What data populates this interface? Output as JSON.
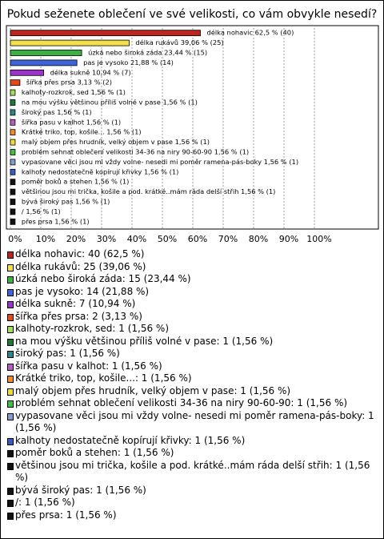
{
  "chart_data": {
    "type": "bar",
    "orientation": "horizontal",
    "title": "Pokud seženete oblečení ve své velikosti, co vám obvykle nesedí?",
    "categories": [
      "délka nohavic",
      "délka rukávů",
      "úzká nebo široká záda",
      "pas je vysoko",
      "délka sukně",
      "šířka přes prsa",
      "kalhoty-rozkrok, sed",
      "na mou výšku většinou příliš volné v pase",
      "široký pas",
      "šířka pasu v kalhot",
      "Krátké triko, top, košile...",
      "malý objem přes hrudník, velký objem v pase",
      "problém sehnat oblečení velikosti 34-36 na niry 90-60-90",
      "vypasovane věci jsou mi vždy volne- nesedi mi poměr ramena-pás-boky",
      "kalhoty nedostatečně kopírují křivky",
      "poměr boků a stehen",
      "většinou jsou mi trička, košile a pod. krátké..mám ráda delší střih",
      "bývá široký pas",
      "/",
      "přes prsa"
    ],
    "values": [
      62.5,
      39.06,
      23.44,
      21.88,
      10.94,
      3.13,
      1.56,
      1.56,
      1.56,
      1.56,
      1.56,
      1.56,
      1.56,
      1.56,
      1.56,
      1.56,
      1.56,
      1.56,
      1.56,
      1.56
    ],
    "value_labels": [
      "délka nohavic 62,5 % (40)",
      "délka rukávů 39,06 % (25)",
      "úzká nebo široká záda 23,44 % (15)",
      "pas je vysoko 21,88 % (14)",
      "délka sukně 10,94 % (7)",
      "šířka přes prsa 3,13 % (2)",
      "kalhoty-rozkrok, sed 1,56 % (1)",
      "na mou výšku většinou příliš volné v pase 1,56 % (1)",
      "široký pas 1,56 % (1)",
      "šířka pasu v kalhot 1,56 % (1)",
      "Krátké triko, top, košile... 1,56 % (1)",
      "malý objem přes hrudník, velký objem v pase 1,56 % (1)",
      "problém sehnat oblečení velikosti 34-36 na niry 90-60-90 1,56 % (1)",
      "vypasovane věci jsou mi vždy volne- nesedi mi poměr ramena-pás-boky 1,56 % (1)",
      "kalhoty nedostatečně kopírují křivky 1,56 % (1)",
      "poměr boků a stehen 1,56 % (1)",
      "většinou jsou mi trička, košile a pod. krátké..mám ráda delší střih 1,56 % (1)",
      "bývá široký pas 1,56 % (1)",
      "/ 1,56 % (1)",
      "přes prsa 1,56 % (1)"
    ],
    "legend": [
      "délka nohavic: 40 (62,5 %)",
      "délka rukávů: 25 (39,06 %)",
      "úzká nebo široká záda: 15 (23,44 %)",
      "pas je vysoko: 14 (21,88 %)",
      "délka sukně: 7 (10,94 %)",
      "šířka přes prsa: 2 (3,13 %)",
      "kalhoty-rozkrok, sed: 1 (1,56 %)",
      "na mou výšku většinou příliš volné v pase: 1 (1,56 %)",
      "široký pas: 1 (1,56 %)",
      "šířka pasu v kalhot: 1 (1,56 %)",
      "Krátké triko, top, košile...: 1 (1,56 %)",
      "malý objem přes hrudník, velký objem v pase: 1 (1,56 %)",
      "problém sehnat oblečení velikosti 34-36 na niry 90-60-90: 1 (1,56 %)",
      "vypasovane věci jsou mi vždy volne- nesedi mi poměr ramena-pás-boky: 1 (1,56 %)",
      "kalhoty nedostatečně kopírují křivky: 1 (1,56 %)",
      "poměr boků a stehen: 1 (1,56 %)",
      "většinou jsou mi trička, košile a pod. krátké..mám ráda delší střih: 1 (1,56 %)",
      "bývá široký pas: 1 (1,56 %)",
      "/: 1 (1,56 %)",
      "přes prsa: 1 (1,56 %)"
    ],
    "colors": [
      "#b8261c",
      "#f2e04a",
      "#3cb043",
      "#3f63d8",
      "#9b34c9",
      "#e04a1c",
      "#a4dc5c",
      "#1f7a3a",
      "#2e8585",
      "#b85cc4",
      "#f08a2a",
      "#eedc3a",
      "#3fbf46",
      "#8a98d0",
      "#3b5bbd",
      "#111111",
      "#111111",
      "#111111",
      "#111111",
      "#111111"
    ],
    "xlim": [
      0,
      100
    ],
    "xticks": [
      {
        "value": 0,
        "label": "0%"
      },
      {
        "value": 10,
        "label": "10%"
      },
      {
        "value": 20,
        "label": "20%"
      },
      {
        "value": 30,
        "label": "30%"
      },
      {
        "value": 40,
        "label": "40%"
      },
      {
        "value": 50,
        "label": "50%"
      },
      {
        "value": 60,
        "label": "60%"
      },
      {
        "value": 70,
        "label": "70%"
      },
      {
        "value": 80,
        "label": "80%"
      },
      {
        "value": 90,
        "label": "90%"
      },
      {
        "value": 100,
        "label": "100%"
      }
    ],
    "grid": true
  }
}
